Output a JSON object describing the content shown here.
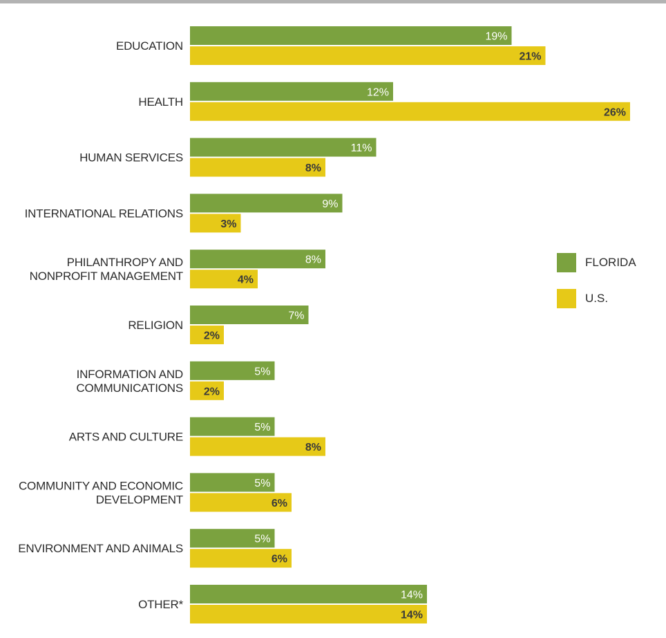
{
  "colors": {
    "florida": "#7ba23f",
    "us": "#e6c918",
    "label_on_florida": "#ffffff",
    "label_on_us": "#3a3a3a",
    "text": "#2b2b2b",
    "top_rule": "#b3b3b3"
  },
  "legend": [
    {
      "name": "FLORIDA",
      "color_key": "florida"
    },
    {
      "name": "U.S.",
      "color_key": "us"
    }
  ],
  "chart_data": {
    "type": "bar",
    "orientation": "horizontal",
    "grid": false,
    "legend_position": "right",
    "xlim": [
      0,
      27.5
    ],
    "categories": [
      [
        "EDUCATION"
      ],
      [
        "HEALTH"
      ],
      [
        "HUMAN SERVICES"
      ],
      [
        "INTERNATIONAL RELATIONS"
      ],
      [
        "PHILANTHROPY AND",
        "NONPROFIT MANAGEMENT"
      ],
      [
        "RELIGION"
      ],
      [
        "INFORMATION AND",
        "COMMUNICATIONS"
      ],
      [
        "ARTS AND CULTURE"
      ],
      [
        "COMMUNITY AND ECONOMIC",
        "DEVELOPMENT"
      ],
      [
        "ENVIRONMENT AND ANIMALS"
      ],
      [
        "OTHER*"
      ]
    ],
    "series": [
      {
        "name": "FLORIDA",
        "values": [
          19,
          12,
          11,
          9,
          8,
          7,
          5,
          5,
          5,
          5,
          14
        ]
      },
      {
        "name": "U.S.",
        "values": [
          21,
          26,
          8,
          3,
          4,
          2,
          2,
          8,
          6,
          6,
          14
        ]
      }
    ],
    "value_suffix": "%"
  }
}
